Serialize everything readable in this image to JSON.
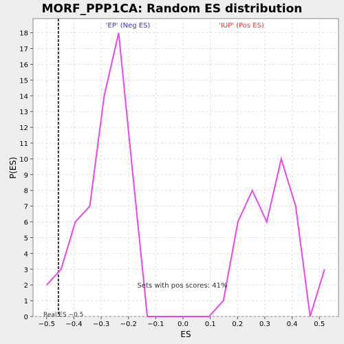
{
  "chart_data": {
    "type": "line",
    "title": "MORF_PPP1CA: Random ES distribution",
    "xlabel": "ES",
    "ylabel": "P(ES)",
    "xlim": [
      -0.55,
      0.57
    ],
    "ylim": [
      0,
      18.9
    ],
    "xticks": [
      -0.5,
      -0.4,
      -0.3,
      -0.2,
      -0.1,
      0.0,
      0.1,
      0.2,
      0.3,
      0.4,
      0.5
    ],
    "xtick_labels": [
      "−0.5",
      "−0.4",
      "−0.3",
      "−0.2",
      "−0.1",
      "0.0",
      "0.1",
      "0.2",
      "0.3",
      "0.4",
      "0.5"
    ],
    "yticks": [
      0,
      1,
      2,
      3,
      4,
      5,
      6,
      7,
      8,
      9,
      10,
      11,
      12,
      13,
      14,
      15,
      16,
      17,
      18
    ],
    "grid": true,
    "series": [
      {
        "color": "#ee44ee",
        "x": [
          -0.5,
          -0.447,
          -0.395,
          -0.342,
          -0.289,
          -0.236,
          -0.184,
          -0.131,
          -0.078,
          -0.025,
          0.028,
          0.095,
          0.148,
          0.201,
          0.254,
          0.307,
          0.36,
          0.413,
          0.466,
          0.519
        ],
        "y": [
          2,
          3,
          6,
          7,
          14,
          18,
          9,
          0,
          0,
          0,
          0,
          0,
          1,
          6,
          8,
          6,
          10,
          7,
          0,
          3
        ]
      }
    ],
    "real_es": {
      "x": -0.457,
      "label": "Real ES −0.5",
      "color": "#333333"
    },
    "annotations": {
      "ep_label": "'EP' (Neg ES)",
      "ep_color": "#3333dd",
      "iup_label": "'IUP' (Pos ES)",
      "iup_color": "#ee3333",
      "pos_scores": "Sets with pos scores: 41%"
    }
  }
}
